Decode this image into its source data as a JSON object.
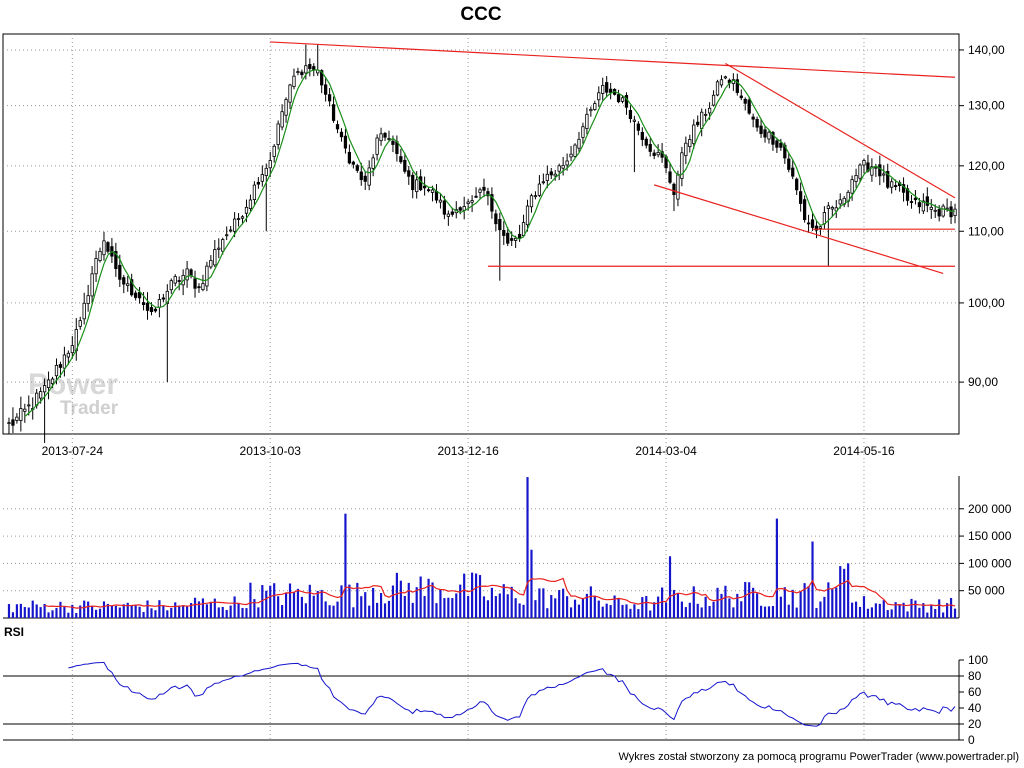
{
  "title": "CCC",
  "watermark": {
    "brand_top": "Power",
    "brand_bottom": "Trader"
  },
  "footer": "Wykres został stworzony za pomocą programu PowerTrader (www.powertrader.pl)",
  "colors": {
    "candle": "#000000",
    "sma": "#1a8f1a",
    "trendline": "#e8231f",
    "volume_bar": "#1515cc",
    "volume_avg": "#e8231f",
    "rsi_line": "#1515cc",
    "grid": "#9a9a9a"
  },
  "chart_data": [
    {
      "type": "candlestick",
      "title": "CCC",
      "x_tick_labels": [
        "2013-07-24",
        "2013-10-03",
        "2013-12-16",
        "2014-03-04",
        "2014-05-16"
      ],
      "x_tick_index": [
        16,
        66,
        116,
        166,
        216
      ],
      "y_tick_labels": [
        "140,00",
        "130,00",
        "120,00",
        "110,00",
        "100,00",
        "90,00"
      ],
      "y_ticks": [
        140,
        130,
        120,
        110,
        100,
        90
      ],
      "ylim": [
        84,
        143
      ],
      "scale": "log",
      "grid": true,
      "sessions": 240,
      "close_anchors": [
        [
          0,
          85
        ],
        [
          3,
          86
        ],
        [
          6,
          87.5
        ],
        [
          9,
          89
        ],
        [
          12,
          91.5
        ],
        [
          15,
          94
        ],
        [
          18,
          97
        ],
        [
          21,
          104
        ],
        [
          24,
          109
        ],
        [
          27,
          104
        ],
        [
          30,
          102
        ],
        [
          33,
          101
        ],
        [
          36,
          98
        ],
        [
          39,
          101
        ],
        [
          42,
          103
        ],
        [
          45,
          104
        ],
        [
          48,
          102
        ],
        [
          51,
          106
        ],
        [
          54,
          109
        ],
        [
          57,
          111
        ],
        [
          60,
          114
        ],
        [
          63,
          118
        ],
        [
          66,
          121
        ],
        [
          69,
          129
        ],
        [
          72,
          135
        ],
        [
          75,
          137
        ],
        [
          78,
          136
        ],
        [
          81,
          130
        ],
        [
          84,
          124
        ],
        [
          87,
          120
        ],
        [
          90,
          117
        ],
        [
          93,
          124
        ],
        [
          96,
          125
        ],
        [
          99,
          120
        ],
        [
          102,
          117
        ],
        [
          105,
          117
        ],
        [
          108,
          115
        ],
        [
          111,
          112
        ],
        [
          114,
          114
        ],
        [
          117,
          114
        ],
        [
          120,
          116
        ],
        [
          123,
          112
        ],
        [
          126,
          108
        ],
        [
          129,
          109
        ],
        [
          132,
          115
        ],
        [
          135,
          118
        ],
        [
          138,
          119
        ],
        [
          141,
          121
        ],
        [
          144,
          125
        ],
        [
          147,
          129
        ],
        [
          150,
          133
        ],
        [
          153,
          132
        ],
        [
          156,
          130
        ],
        [
          159,
          126
        ],
        [
          162,
          123
        ],
        [
          165,
          121
        ],
        [
          168,
          116
        ],
        [
          171,
          124
        ],
        [
          174,
          127
        ],
        [
          177,
          130
        ],
        [
          180,
          135
        ],
        [
          183,
          134
        ],
        [
          186,
          130
        ],
        [
          189,
          126
        ],
        [
          192,
          125
        ],
        [
          195,
          123
        ],
        [
          198,
          118
        ],
        [
          201,
          112
        ],
        [
          204,
          110
        ],
        [
          207,
          113
        ],
        [
          210,
          114
        ],
        [
          213,
          118
        ],
        [
          216,
          120
        ],
        [
          219,
          120
        ],
        [
          222,
          117
        ],
        [
          225,
          116
        ],
        [
          228,
          114
        ],
        [
          231,
          114
        ],
        [
          234,
          113
        ],
        [
          239,
          113
        ]
      ],
      "spikes": [
        [
          9,
          83
        ],
        [
          40,
          90
        ],
        [
          65,
          110
        ],
        [
          75,
          141
        ],
        [
          78,
          141
        ],
        [
          124,
          103
        ],
        [
          158,
          119
        ],
        [
          168,
          113
        ],
        [
          207,
          105
        ]
      ],
      "sma_period": 5,
      "trendlines": [
        {
          "x1": 66,
          "y1": 141.5,
          "x2": 239,
          "y2": 135
        },
        {
          "x1": 181,
          "y1": 137.5,
          "x2": 239,
          "y2": 115
        },
        {
          "x1": 163,
          "y1": 117,
          "x2": 236,
          "y2": 104
        },
        {
          "x1": 121,
          "y1": 105,
          "x2": 239,
          "y2": 105
        },
        {
          "x1": 203,
          "y1": 110.3,
          "x2": 239,
          "y2": 110.3
        }
      ]
    },
    {
      "type": "bar",
      "title": "",
      "y_tick_labels": [
        "200 000",
        "150 000",
        "100 000",
        "50 000"
      ],
      "y_ticks": [
        200000,
        150000,
        100000,
        50000
      ],
      "ylim": [
        0,
        260000
      ],
      "base_volume": [
        20000,
        20000,
        20000,
        25000,
        40000,
        40000,
        50000,
        50000,
        40000,
        35000,
        25000,
        35000,
        40000,
        40000,
        25000,
        22000
      ],
      "volume_peaks": [
        [
          85,
          191000
        ],
        [
          131,
          258000
        ],
        [
          132,
          125000
        ],
        [
          167,
          113000
        ],
        [
          194,
          182000
        ],
        [
          203,
          140000
        ],
        [
          210,
          95000
        ],
        [
          211,
          90000
        ],
        [
          212,
          100000
        ]
      ],
      "avg_period": 10
    },
    {
      "type": "line",
      "title": "RSI",
      "y_tick_labels": [
        "100",
        "80",
        "60",
        "40",
        "20",
        "0"
      ],
      "y_ticks": [
        100,
        80,
        60,
        40,
        20,
        0
      ],
      "ylim": [
        0,
        100
      ],
      "reference_levels": [
        80,
        20
      ],
      "period": 14
    }
  ]
}
